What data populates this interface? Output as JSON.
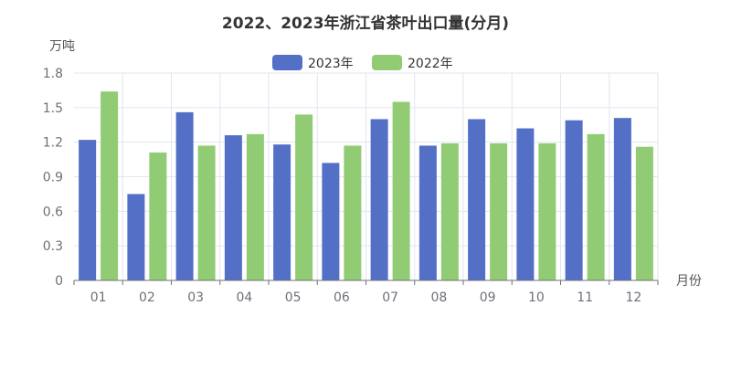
{
  "chart_data": {
    "type": "bar",
    "title": "2022、2023年浙江省茶叶出口量(分月)",
    "ylabel": "万吨",
    "xlabel": "月份",
    "categories": [
      "01",
      "02",
      "03",
      "04",
      "05",
      "06",
      "07",
      "08",
      "09",
      "10",
      "11",
      "12"
    ],
    "series": [
      {
        "name": "2023年",
        "color": "#5470c6",
        "values": [
          1.22,
          0.75,
          1.46,
          1.26,
          1.18,
          1.02,
          1.4,
          1.17,
          1.4,
          1.32,
          1.39,
          1.41
        ]
      },
      {
        "name": "2022年",
        "color": "#91cc75",
        "values": [
          1.64,
          1.11,
          1.17,
          1.27,
          1.44,
          1.17,
          1.55,
          1.19,
          1.19,
          1.19,
          1.27,
          1.16
        ]
      }
    ],
    "ylim": [
      0,
      1.8
    ],
    "yticks": [
      "0",
      "0.3",
      "0.6",
      "0.9",
      "1.2",
      "1.5",
      "1.8"
    ],
    "grid": true,
    "legend_position": "top-center"
  }
}
